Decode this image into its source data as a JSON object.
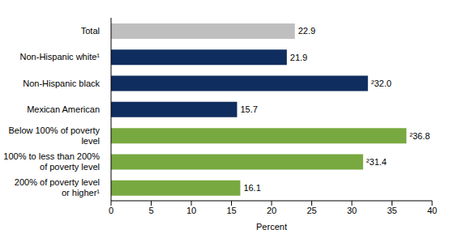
{
  "chart_data": {
    "type": "bar",
    "orientation": "horizontal",
    "categories": [
      "Total",
      "Non-Hispanic white¹",
      "Non-Hispanic black",
      "Mexican American",
      "Below 100% of poverty level",
      "100% to less than 200% of poverty level",
      "200% of poverty level or higher¹"
    ],
    "values": [
      22.9,
      21.9,
      32.0,
      15.7,
      36.8,
      31.4,
      16.1
    ],
    "value_labels": [
      "22.9",
      "21.9",
      "²32.0",
      "15.7",
      "²36.8",
      "²31.4",
      "16.1"
    ],
    "colors": [
      "#bfbfbf",
      "#0f2d5e",
      "#0f2d5e",
      "#0f2d5e",
      "#78a941",
      "#78a941",
      "#78a941"
    ],
    "xlabel": "Percent",
    "xlim": [
      0,
      40
    ],
    "xticks": [
      0,
      5,
      10,
      15,
      20,
      25,
      30,
      35,
      40
    ],
    "grid": false,
    "data_labels": true
  }
}
